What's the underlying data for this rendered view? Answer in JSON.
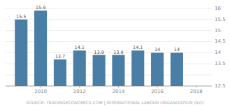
{
  "chart_data": {
    "type": "bar",
    "x": [
      2009,
      2010,
      2011,
      2012,
      2013,
      2014,
      2015,
      2016,
      2017
    ],
    "values": [
      15.5,
      15.9,
      13.7,
      14.1,
      13.9,
      13.9,
      14.1,
      14.0,
      14.0
    ],
    "color": "#4a7ea5",
    "xlim": [
      2008.2,
      2018.8
    ],
    "xticks": [
      2010,
      2012,
      2014,
      2016,
      2018
    ],
    "ylim": [
      12.5,
      16
    ],
    "yticks": [
      12.5,
      {
        "value": 13,
        "label": ""
      },
      13.5,
      14,
      14.5,
      15,
      15.5,
      16
    ],
    "grid": true,
    "data_labels": true,
    "annotations": [
      "SOURCE: TRADINGECONOMICS.COM | INTERNATIONAL LABOUR ORGANIZATION (ILO)"
    ]
  }
}
